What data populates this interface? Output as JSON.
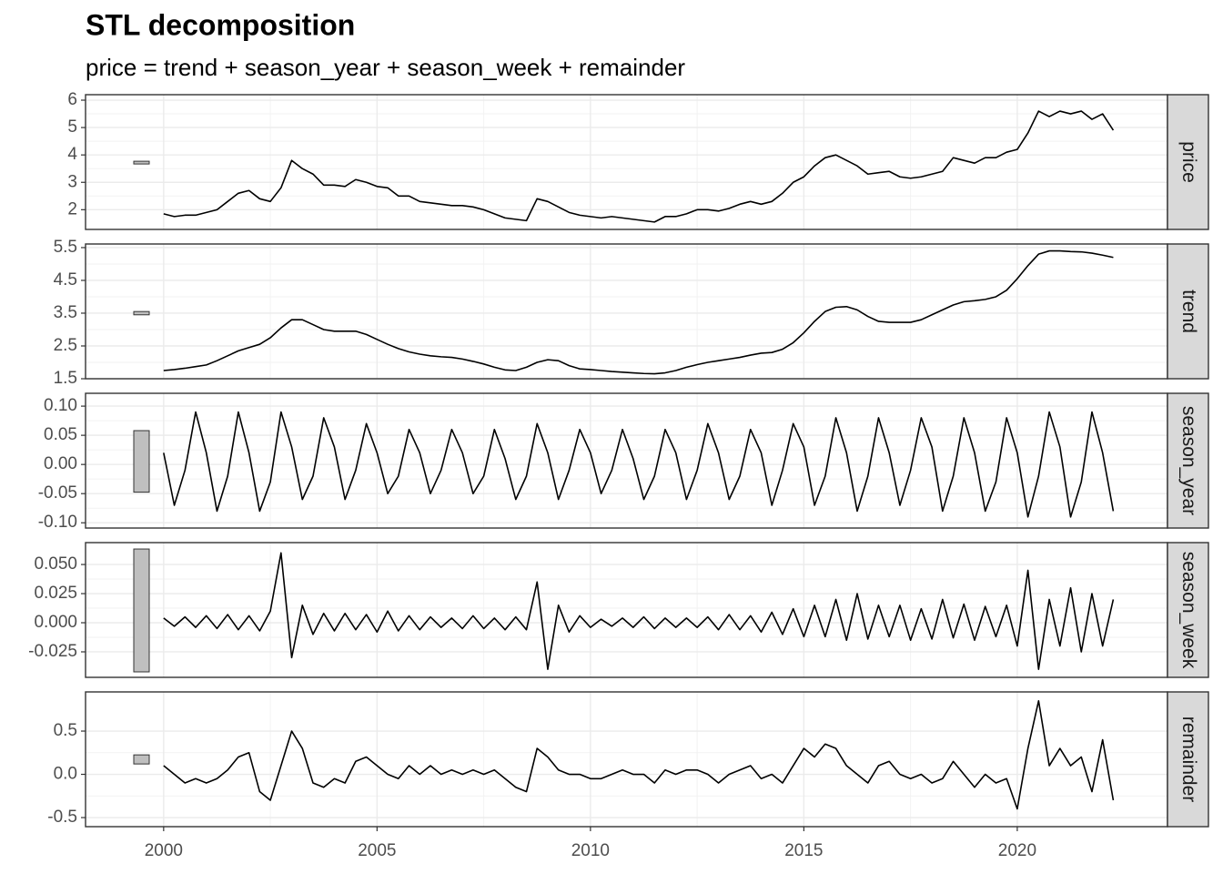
{
  "chart_data": {
    "type": "line",
    "title": "STL decomposition",
    "subtitle": "price = trend + season_year + season_week + remainder",
    "color": "#000000",
    "grid": true,
    "x": [
      2000,
      2000.25,
      2000.5,
      2000.75,
      2001,
      2001.25,
      2001.5,
      2001.75,
      2002,
      2002.25,
      2002.5,
      2002.75,
      2003,
      2003.25,
      2003.5,
      2003.75,
      2004,
      2004.25,
      2004.5,
      2004.75,
      2005,
      2005.25,
      2005.5,
      2005.75,
      2006,
      2006.25,
      2006.5,
      2006.75,
      2007,
      2007.25,
      2007.5,
      2007.75,
      2008,
      2008.25,
      2008.5,
      2008.75,
      2009,
      2009.25,
      2009.5,
      2009.75,
      2010,
      2010.25,
      2010.5,
      2010.75,
      2011,
      2011.25,
      2011.5,
      2011.75,
      2012,
      2012.25,
      2012.5,
      2012.75,
      2013,
      2013.25,
      2013.5,
      2013.75,
      2014,
      2014.25,
      2014.5,
      2014.75,
      2015,
      2015.25,
      2015.5,
      2015.75,
      2016,
      2016.25,
      2016.5,
      2016.75,
      2017,
      2017.25,
      2017.5,
      2017.75,
      2018,
      2018.25,
      2018.5,
      2018.75,
      2019,
      2019.25,
      2019.5,
      2019.75,
      2020,
      2020.25,
      2020.5,
      2020.75,
      2021,
      2021.25,
      2021.5,
      2021.75,
      2022,
      2022.25
    ],
    "xlim": [
      1998.17,
      2023.52
    ],
    "xticks": [
      2000,
      2005,
      2010,
      2015,
      2020
    ],
    "series": [
      {
        "name": "price",
        "ylim": [
          1.28,
          6.2
        ],
        "yticks": [
          2,
          3,
          4,
          5,
          6
        ],
        "scale_bar": [
          3.67,
          3.77
        ],
        "values": [
          1.85,
          1.75,
          1.8,
          1.8,
          1.9,
          2.0,
          2.3,
          2.6,
          2.7,
          2.4,
          2.3,
          2.8,
          3.8,
          3.5,
          3.3,
          2.9,
          2.9,
          2.85,
          3.1,
          3.0,
          2.85,
          2.8,
          2.5,
          2.5,
          2.3,
          2.25,
          2.2,
          2.15,
          2.15,
          2.1,
          2.0,
          1.85,
          1.7,
          1.65,
          1.6,
          2.4,
          2.3,
          2.1,
          1.9,
          1.8,
          1.75,
          1.7,
          1.75,
          1.7,
          1.65,
          1.6,
          1.55,
          1.75,
          1.75,
          1.85,
          2.0,
          2.0,
          1.95,
          2.05,
          2.2,
          2.3,
          2.2,
          2.3,
          2.6,
          3.0,
          3.2,
          3.6,
          3.9,
          4.0,
          3.8,
          3.6,
          3.3,
          3.35,
          3.4,
          3.2,
          3.15,
          3.2,
          3.3,
          3.4,
          3.9,
          3.8,
          3.7,
          3.9,
          3.9,
          4.1,
          4.2,
          4.8,
          5.6,
          5.4,
          5.6,
          5.5,
          5.6,
          5.3,
          5.5,
          4.9
        ]
      },
      {
        "name": "trend",
        "ylim": [
          1.5,
          5.61
        ],
        "yticks": [
          1.5,
          2.5,
          3.5,
          4.5,
          5.5
        ],
        "scale_bar": [
          3.45,
          3.55
        ],
        "values": [
          1.75,
          1.78,
          1.82,
          1.87,
          1.92,
          2.05,
          2.2,
          2.35,
          2.45,
          2.55,
          2.75,
          3.05,
          3.3,
          3.3,
          3.15,
          3.0,
          2.95,
          2.95,
          2.95,
          2.85,
          2.7,
          2.55,
          2.42,
          2.32,
          2.25,
          2.2,
          2.17,
          2.15,
          2.1,
          2.03,
          1.95,
          1.85,
          1.77,
          1.75,
          1.85,
          2.0,
          2.08,
          2.05,
          1.9,
          1.8,
          1.78,
          1.75,
          1.72,
          1.7,
          1.68,
          1.66,
          1.65,
          1.68,
          1.75,
          1.85,
          1.93,
          2.0,
          2.05,
          2.1,
          2.15,
          2.22,
          2.28,
          2.3,
          2.4,
          2.6,
          2.9,
          3.25,
          3.55,
          3.68,
          3.7,
          3.6,
          3.4,
          3.25,
          3.22,
          3.22,
          3.22,
          3.3,
          3.45,
          3.6,
          3.75,
          3.85,
          3.88,
          3.92,
          4.0,
          4.2,
          4.55,
          4.95,
          5.3,
          5.4,
          5.4,
          5.38,
          5.37,
          5.33,
          5.27,
          5.2
        ]
      },
      {
        "name": "season_year",
        "ylim": [
          -0.109,
          0.122
        ],
        "yticks": [
          {
            "value": -0.1,
            "label": "-0.10"
          },
          -0.05,
          {
            "value": 0,
            "label": "0.00"
          },
          0.05,
          {
            "value": 0.1,
            "label": "0.10"
          }
        ],
        "scale_bar": [
          -0.0475,
          0.058
        ],
        "values": [
          0.02,
          -0.07,
          -0.01,
          0.09,
          0.02,
          -0.08,
          -0.02,
          0.09,
          0.02,
          -0.08,
          -0.03,
          0.09,
          0.03,
          -0.06,
          -0.02,
          0.08,
          0.03,
          -0.06,
          -0.01,
          0.07,
          0.02,
          -0.05,
          -0.02,
          0.06,
          0.02,
          -0.05,
          -0.01,
          0.06,
          0.02,
          -0.05,
          -0.02,
          0.06,
          0.01,
          -0.06,
          -0.02,
          0.07,
          0.02,
          -0.06,
          -0.01,
          0.06,
          0.02,
          -0.05,
          -0.01,
          0.06,
          0.01,
          -0.06,
          -0.02,
          0.06,
          0.02,
          -0.06,
          -0.01,
          0.07,
          0.02,
          -0.06,
          -0.02,
          0.06,
          0.02,
          -0.07,
          -0.01,
          0.07,
          0.03,
          -0.07,
          -0.02,
          0.08,
          0.02,
          -0.08,
          -0.02,
          0.08,
          0.02,
          -0.07,
          -0.01,
          0.08,
          0.03,
          -0.08,
          -0.02,
          0.08,
          0.02,
          -0.08,
          -0.03,
          0.08,
          0.02,
          -0.09,
          -0.02,
          0.09,
          0.03,
          -0.09,
          -0.03,
          0.09,
          0.02,
          -0.08
        ]
      },
      {
        "name": "season_week",
        "ylim": [
          -0.0469,
          0.0688
        ],
        "yticks": [
          -0.025,
          {
            "value": 0,
            "label": "0.000"
          },
          0.025,
          {
            "value": 0.05,
            "label": "0.050"
          }
        ],
        "scale_bar": [
          -0.0422,
          0.0633
        ],
        "values": [
          0.004,
          -0.003,
          0.005,
          -0.004,
          0.006,
          -0.005,
          0.007,
          -0.006,
          0.006,
          -0.007,
          0.01,
          0.06,
          -0.03,
          0.015,
          -0.01,
          0.008,
          -0.007,
          0.008,
          -0.006,
          0.007,
          -0.008,
          0.01,
          -0.007,
          0.006,
          -0.006,
          0.005,
          -0.004,
          0.004,
          -0.005,
          0.006,
          -0.005,
          0.004,
          -0.006,
          0.005,
          -0.006,
          0.035,
          -0.04,
          0.015,
          -0.008,
          0.006,
          -0.004,
          0.003,
          -0.003,
          0.004,
          -0.004,
          0.005,
          -0.005,
          0.004,
          -0.004,
          0.004,
          -0.004,
          0.005,
          -0.006,
          0.007,
          -0.006,
          0.006,
          -0.008,
          0.009,
          -0.01,
          0.012,
          -0.012,
          0.015,
          -0.012,
          0.02,
          -0.015,
          0.025,
          -0.014,
          0.015,
          -0.012,
          0.015,
          -0.015,
          0.012,
          -0.014,
          0.02,
          -0.013,
          0.016,
          -0.015,
          0.014,
          -0.012,
          0.015,
          -0.02,
          0.045,
          -0.04,
          0.02,
          -0.02,
          0.03,
          -0.025,
          0.025,
          -0.02,
          0.02
        ]
      },
      {
        "name": "remainder",
        "ylim": [
          -0.605,
          0.953
        ],
        "yticks": [
          -0.5,
          {
            "value": 0,
            "label": "0.0"
          },
          0.5
        ],
        "scale_bar": [
          0.12,
          0.225
        ],
        "values": [
          0.1,
          0.0,
          -0.1,
          -0.05,
          -0.1,
          -0.05,
          0.05,
          0.2,
          0.25,
          -0.2,
          -0.3,
          0.1,
          0.5,
          0.3,
          -0.1,
          -0.15,
          -0.05,
          -0.1,
          0.15,
          0.2,
          0.1,
          0.0,
          -0.05,
          0.1,
          0.0,
          0.1,
          0.0,
          0.05,
          0.0,
          0.05,
          0.0,
          0.05,
          -0.05,
          -0.15,
          -0.2,
          0.3,
          0.2,
          0.05,
          0.0,
          0.0,
          -0.05,
          -0.05,
          0.0,
          0.05,
          0.0,
          0.0,
          -0.1,
          0.05,
          0.0,
          0.05,
          0.05,
          0.0,
          -0.1,
          0.0,
          0.05,
          0.1,
          -0.05,
          0.0,
          -0.1,
          0.1,
          0.3,
          0.2,
          0.35,
          0.3,
          0.1,
          0.0,
          -0.1,
          0.1,
          0.15,
          0.0,
          -0.05,
          0.0,
          -0.1,
          -0.05,
          0.15,
          0.0,
          -0.15,
          0.0,
          -0.1,
          -0.05,
          -0.4,
          0.3,
          0.85,
          0.1,
          0.3,
          0.1,
          0.2,
          -0.2,
          0.4,
          -0.3
        ]
      }
    ]
  }
}
